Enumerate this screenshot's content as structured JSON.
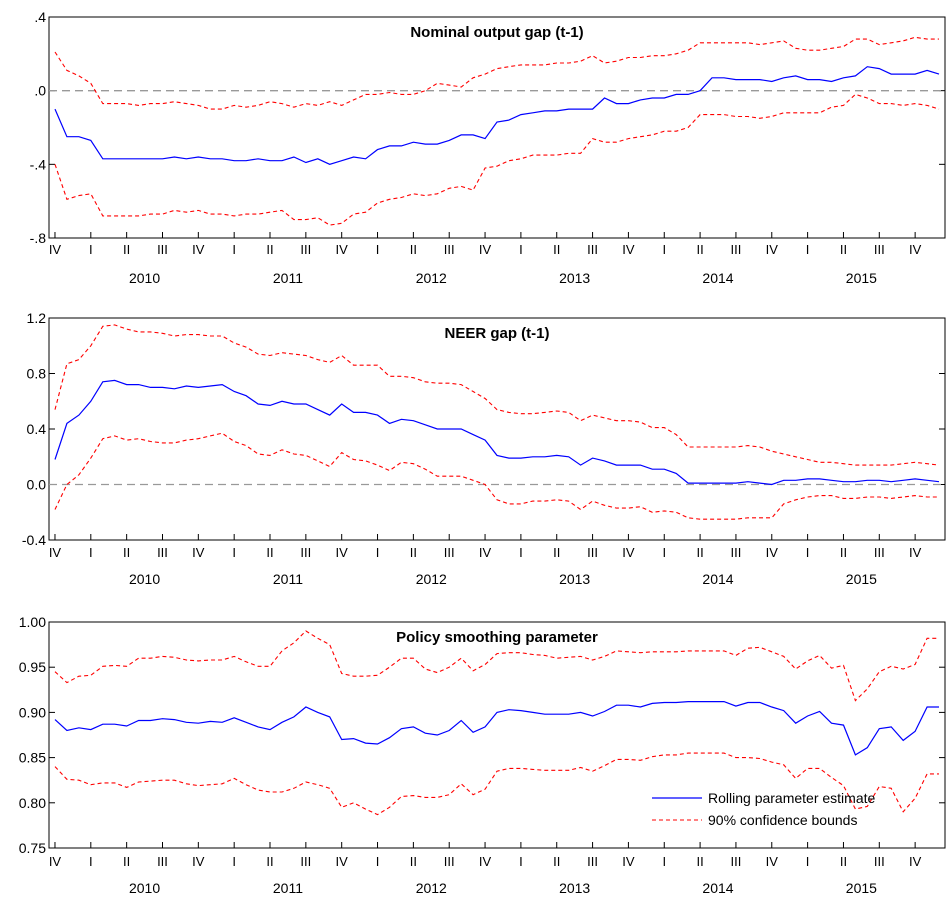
{
  "x_axis": {
    "quarter_labels": [
      "IV",
      "I",
      "II",
      "III",
      "IV",
      "I",
      "II",
      "III",
      "IV",
      "I",
      "II",
      "III",
      "IV",
      "I",
      "II",
      "III",
      "IV",
      "I",
      "II",
      "III",
      "IV",
      "I",
      "II",
      "III",
      "IV"
    ],
    "years": [
      "2010",
      "2011",
      "2012",
      "2013",
      "2014",
      "2015"
    ]
  },
  "legend": {
    "estimate_label": "Rolling parameter estimate",
    "bounds_label": "90% confidence bounds"
  },
  "colors": {
    "estimate": "#0000ff",
    "bounds": "#ff0000",
    "zero_line": "#999999"
  },
  "chart_data": [
    {
      "type": "line",
      "title": "Nominal output gap (t-1)",
      "ylim": [
        -0.8,
        0.4
      ],
      "yticks": [
        -0.8,
        -0.4,
        0.0,
        0.4
      ],
      "ytick_labels": [
        "-.8",
        "-.4",
        ".0",
        ".4"
      ],
      "zero_line": true,
      "series": [
        {
          "name": "Rolling parameter estimate",
          "values": [
            -0.1,
            -0.25,
            -0.25,
            -0.27,
            -0.37,
            -0.37,
            -0.37,
            -0.37,
            -0.37,
            -0.37,
            -0.36,
            -0.37,
            -0.36,
            -0.37,
            -0.37,
            -0.38,
            -0.38,
            -0.37,
            -0.38,
            -0.38,
            -0.36,
            -0.39,
            -0.37,
            -0.4,
            -0.38,
            -0.36,
            -0.37,
            -0.32,
            -0.3,
            -0.3,
            -0.28,
            -0.29,
            -0.29,
            -0.27,
            -0.24,
            -0.24,
            -0.26,
            -0.17,
            -0.16,
            -0.13,
            -0.12,
            -0.11,
            -0.11,
            -0.1,
            -0.1,
            -0.1,
            -0.04,
            -0.07,
            -0.07,
            -0.05,
            -0.04,
            -0.04,
            -0.02,
            -0.02,
            0.0,
            0.07,
            0.07,
            0.06,
            0.06,
            0.06,
            0.05,
            0.07,
            0.08,
            0.06,
            0.06,
            0.05,
            0.07,
            0.08,
            0.13,
            0.12,
            0.09,
            0.09,
            0.09,
            0.11,
            0.09
          ]
        },
        {
          "name": "90% confidence bounds",
          "values": [
            0.21,
            0.11,
            0.08,
            0.04,
            -0.07,
            -0.07,
            -0.07,
            -0.08,
            -0.07,
            -0.07,
            -0.06,
            -0.07,
            -0.08,
            -0.1,
            -0.1,
            -0.08,
            -0.09,
            -0.08,
            -0.06,
            -0.07,
            -0.09,
            -0.07,
            -0.08,
            -0.06,
            -0.08,
            -0.05,
            -0.02,
            -0.02,
            -0.01,
            -0.02,
            -0.02,
            0.0,
            0.04,
            0.03,
            0.02,
            0.07,
            0.09,
            0.12,
            0.13,
            0.14,
            0.14,
            0.14,
            0.15,
            0.15,
            0.16,
            0.19,
            0.15,
            0.16,
            0.18,
            0.18,
            0.19,
            0.19,
            0.2,
            0.22,
            0.26,
            0.26,
            0.26,
            0.26,
            0.26,
            0.25,
            0.26,
            0.27,
            0.23,
            0.22,
            0.22,
            0.23,
            0.24,
            0.28,
            0.28,
            0.25,
            0.26,
            0.27,
            0.29,
            0.28,
            0.28
          ]
        },
        {
          "values": [
            -0.4,
            -0.59,
            -0.57,
            -0.56,
            -0.68,
            -0.68,
            -0.68,
            -0.68,
            -0.67,
            -0.67,
            -0.65,
            -0.66,
            -0.65,
            -0.67,
            -0.67,
            -0.68,
            -0.67,
            -0.67,
            -0.66,
            -0.65,
            -0.7,
            -0.7,
            -0.69,
            -0.73,
            -0.72,
            -0.67,
            -0.66,
            -0.61,
            -0.59,
            -0.58,
            -0.56,
            -0.57,
            -0.56,
            -0.53,
            -0.52,
            -0.54,
            -0.42,
            -0.41,
            -0.38,
            -0.37,
            -0.35,
            -0.35,
            -0.35,
            -0.34,
            -0.34,
            -0.26,
            -0.28,
            -0.28,
            -0.26,
            -0.25,
            -0.24,
            -0.22,
            -0.22,
            -0.2,
            -0.13,
            -0.13,
            -0.13,
            -0.14,
            -0.14,
            -0.15,
            -0.14,
            -0.12,
            -0.12,
            -0.12,
            -0.12,
            -0.09,
            -0.08,
            -0.02,
            -0.04,
            -0.07,
            -0.07,
            -0.08,
            -0.07,
            -0.08,
            -0.1
          ]
        }
      ]
    },
    {
      "type": "line",
      "title": "NEER gap (t-1)",
      "ylim": [
        -0.4,
        1.2
      ],
      "yticks": [
        -0.4,
        0.0,
        0.4,
        0.8,
        1.2
      ],
      "ytick_labels": [
        "-0.4",
        "0.0",
        "0.4",
        "0.8",
        "1.2"
      ],
      "zero_line": true,
      "series": [
        {
          "name": "Rolling parameter estimate",
          "values": [
            0.18,
            0.44,
            0.5,
            0.6,
            0.74,
            0.75,
            0.72,
            0.72,
            0.7,
            0.7,
            0.69,
            0.71,
            0.7,
            0.71,
            0.72,
            0.67,
            0.64,
            0.58,
            0.57,
            0.6,
            0.58,
            0.58,
            0.54,
            0.5,
            0.58,
            0.52,
            0.52,
            0.5,
            0.44,
            0.47,
            0.46,
            0.43,
            0.4,
            0.4,
            0.4,
            0.36,
            0.32,
            0.21,
            0.19,
            0.19,
            0.2,
            0.2,
            0.21,
            0.2,
            0.14,
            0.19,
            0.17,
            0.14,
            0.14,
            0.14,
            0.11,
            0.11,
            0.08,
            0.01,
            0.01,
            0.01,
            0.01,
            0.01,
            0.02,
            0.01,
            0.0,
            0.03,
            0.03,
            0.04,
            0.04,
            0.03,
            0.02,
            0.02,
            0.03,
            0.03,
            0.02,
            0.03,
            0.04,
            0.03,
            0.02
          ]
        },
        {
          "name": "90% confidence bounds",
          "values": [
            0.54,
            0.87,
            0.9,
            1.0,
            1.14,
            1.15,
            1.12,
            1.1,
            1.1,
            1.09,
            1.07,
            1.08,
            1.08,
            1.07,
            1.07,
            1.02,
            0.99,
            0.94,
            0.93,
            0.95,
            0.94,
            0.93,
            0.9,
            0.88,
            0.93,
            0.86,
            0.86,
            0.86,
            0.78,
            0.78,
            0.77,
            0.74,
            0.73,
            0.73,
            0.72,
            0.67,
            0.62,
            0.54,
            0.52,
            0.51,
            0.51,
            0.52,
            0.53,
            0.52,
            0.46,
            0.5,
            0.48,
            0.46,
            0.46,
            0.45,
            0.41,
            0.41,
            0.36,
            0.27,
            0.27,
            0.27,
            0.27,
            0.27,
            0.28,
            0.27,
            0.24,
            0.22,
            0.2,
            0.18,
            0.16,
            0.16,
            0.15,
            0.14,
            0.14,
            0.14,
            0.14,
            0.15,
            0.16,
            0.15,
            0.14
          ]
        },
        {
          "values": [
            -0.18,
            0.0,
            0.07,
            0.19,
            0.33,
            0.35,
            0.32,
            0.33,
            0.31,
            0.3,
            0.3,
            0.32,
            0.33,
            0.35,
            0.37,
            0.31,
            0.28,
            0.22,
            0.21,
            0.25,
            0.22,
            0.21,
            0.17,
            0.13,
            0.23,
            0.18,
            0.17,
            0.14,
            0.1,
            0.16,
            0.15,
            0.11,
            0.06,
            0.06,
            0.06,
            0.03,
            0.0,
            -0.11,
            -0.14,
            -0.14,
            -0.12,
            -0.12,
            -0.11,
            -0.12,
            -0.18,
            -0.12,
            -0.15,
            -0.17,
            -0.17,
            -0.16,
            -0.2,
            -0.19,
            -0.2,
            -0.24,
            -0.25,
            -0.25,
            -0.25,
            -0.25,
            -0.24,
            -0.24,
            -0.24,
            -0.14,
            -0.11,
            -0.09,
            -0.08,
            -0.08,
            -0.1,
            -0.1,
            -0.09,
            -0.09,
            -0.1,
            -0.09,
            -0.08,
            -0.09,
            -0.09
          ]
        }
      ]
    },
    {
      "type": "line",
      "title": "Policy smoothing parameter",
      "ylim": [
        0.75,
        1.0
      ],
      "yticks": [
        0.75,
        0.8,
        0.85,
        0.9,
        0.95,
        1.0
      ],
      "ytick_labels": [
        "0.75",
        "0.80",
        "0.85",
        "0.90",
        "0.95",
        "1.00"
      ],
      "zero_line": false,
      "legend": true,
      "series": [
        {
          "name": "Rolling parameter estimate",
          "values": [
            0.892,
            0.88,
            0.883,
            0.881,
            0.887,
            0.887,
            0.885,
            0.891,
            0.891,
            0.893,
            0.892,
            0.889,
            0.888,
            0.89,
            0.889,
            0.894,
            0.889,
            0.884,
            0.881,
            0.889,
            0.895,
            0.906,
            0.9,
            0.895,
            0.87,
            0.871,
            0.866,
            0.865,
            0.872,
            0.882,
            0.884,
            0.877,
            0.875,
            0.88,
            0.891,
            0.878,
            0.884,
            0.9,
            0.903,
            0.902,
            0.9,
            0.898,
            0.898,
            0.898,
            0.9,
            0.896,
            0.901,
            0.908,
            0.908,
            0.906,
            0.91,
            0.911,
            0.911,
            0.912,
            0.912,
            0.912,
            0.912,
            0.907,
            0.911,
            0.911,
            0.906,
            0.902,
            0.888,
            0.896,
            0.901,
            0.888,
            0.886,
            0.853,
            0.861,
            0.882,
            0.884,
            0.869,
            0.879,
            0.906,
            0.906
          ]
        },
        {
          "name": "90% confidence bounds",
          "values": [
            0.945,
            0.933,
            0.94,
            0.941,
            0.951,
            0.952,
            0.951,
            0.96,
            0.96,
            0.962,
            0.961,
            0.958,
            0.957,
            0.958,
            0.958,
            0.962,
            0.956,
            0.951,
            0.951,
            0.968,
            0.977,
            0.99,
            0.982,
            0.975,
            0.943,
            0.94,
            0.94,
            0.941,
            0.95,
            0.96,
            0.96,
            0.948,
            0.944,
            0.95,
            0.96,
            0.946,
            0.953,
            0.965,
            0.966,
            0.966,
            0.964,
            0.963,
            0.96,
            0.961,
            0.962,
            0.958,
            0.962,
            0.968,
            0.967,
            0.966,
            0.967,
            0.967,
            0.967,
            0.968,
            0.968,
            0.968,
            0.968,
            0.963,
            0.971,
            0.972,
            0.967,
            0.962,
            0.948,
            0.957,
            0.963,
            0.949,
            0.952,
            0.913,
            0.926,
            0.945,
            0.951,
            0.948,
            0.953,
            0.982,
            0.982
          ]
        },
        {
          "values": [
            0.84,
            0.826,
            0.825,
            0.82,
            0.822,
            0.822,
            0.817,
            0.823,
            0.824,
            0.825,
            0.825,
            0.821,
            0.819,
            0.82,
            0.821,
            0.827,
            0.82,
            0.814,
            0.812,
            0.812,
            0.816,
            0.823,
            0.82,
            0.816,
            0.795,
            0.8,
            0.793,
            0.787,
            0.795,
            0.807,
            0.808,
            0.806,
            0.806,
            0.809,
            0.821,
            0.809,
            0.815,
            0.835,
            0.838,
            0.838,
            0.837,
            0.836,
            0.836,
            0.836,
            0.839,
            0.835,
            0.841,
            0.848,
            0.848,
            0.847,
            0.851,
            0.853,
            0.853,
            0.855,
            0.855,
            0.855,
            0.855,
            0.85,
            0.85,
            0.849,
            0.845,
            0.842,
            0.827,
            0.838,
            0.838,
            0.828,
            0.819,
            0.793,
            0.796,
            0.818,
            0.816,
            0.79,
            0.805,
            0.832,
            0.832
          ]
        }
      ]
    }
  ]
}
